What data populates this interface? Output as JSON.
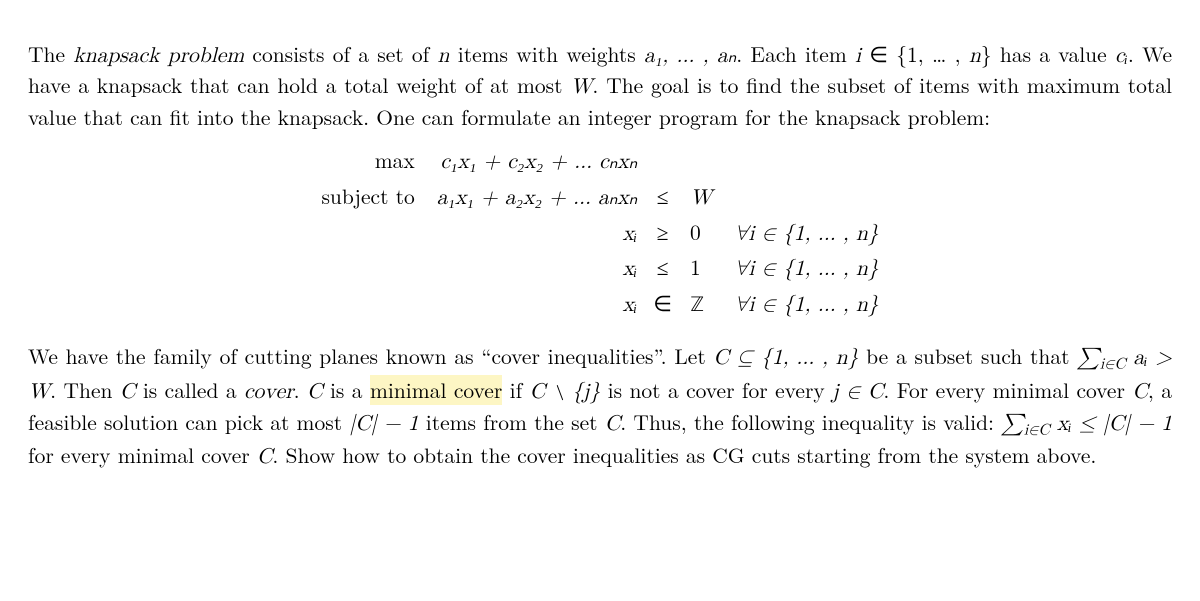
{
  "para1": {
    "t1": "The ",
    "term_knap": "knapsack problem",
    "t2": " consists of a set of ",
    "n": "n",
    "t3": " items with weights ",
    "w_list": "a₁, … , aₙ",
    "t4": ".  Each item ",
    "i": "i",
    "t5": " ∈ {1, … , ",
    "n2": "n",
    "t6": "} has a value ",
    "ci": "cᵢ",
    "t7": ".  We have a knapsack that can hold a total weight of at most ",
    "W": "W",
    "t8": ". The goal is to find the subset of items with maximum total value that can fit into the knapsack. One can formulate an integer program for the knapsack problem:"
  },
  "ip": {
    "max_label": "max",
    "obj": "c₁x₁ + c₂x₂ + … cₙxₙ",
    "st_label": "subject to",
    "row_wt_lhs": "a₁x₁ + a₂x₂ + … aₙxₙ",
    "row_wt_rel": "≤",
    "row_wt_rhs": "W",
    "xi": "xᵢ",
    "geq": "≥",
    "zero": "0",
    "leq": "≤",
    "one": "1",
    "inrel": "∈",
    "Z": "ℤ",
    "forall": "∀i ∈ {1, … , n}"
  },
  "para2": {
    "t1": "We have the family of cutting planes known as “cover inequalities”. Let ",
    "C1": "C ⊆ {1, … , n}",
    "t2": " be a subset such that ",
    "sum_ai": "∑",
    "sum_ai_sub": "i∈C",
    "sum_ai_tail": " aᵢ > W",
    "t3": ". Then ",
    "C2": "C",
    "t4": " is called a ",
    "cover_word": "cover",
    "t5": ".  ",
    "C3": "C",
    "t6": " is a ",
    "min_cover": "minimal cover",
    "t7": " if ",
    "Cminusj": "C ∖ {j}",
    "t8": " is not a cover for every ",
    "jinC": "j ∈ C",
    "t9": ".  For every minimal cover ",
    "C4": "C",
    "t10": ", a feasible solution can pick at most ",
    "Cminus1": "|C| − 1",
    "t11": " items from the set ",
    "C5": "C",
    "t12": ".  Thus, the following inequality is valid: ",
    "ineq_sum": "∑",
    "ineq_sub": "i∈C",
    "ineq_tail": " xᵢ ≤ |C| − 1",
    "t13": " for every minimal cover ",
    "C6": "C",
    "t14": ".  Show how to obtain the cover inequalities as CG cuts starting from the system above."
  }
}
